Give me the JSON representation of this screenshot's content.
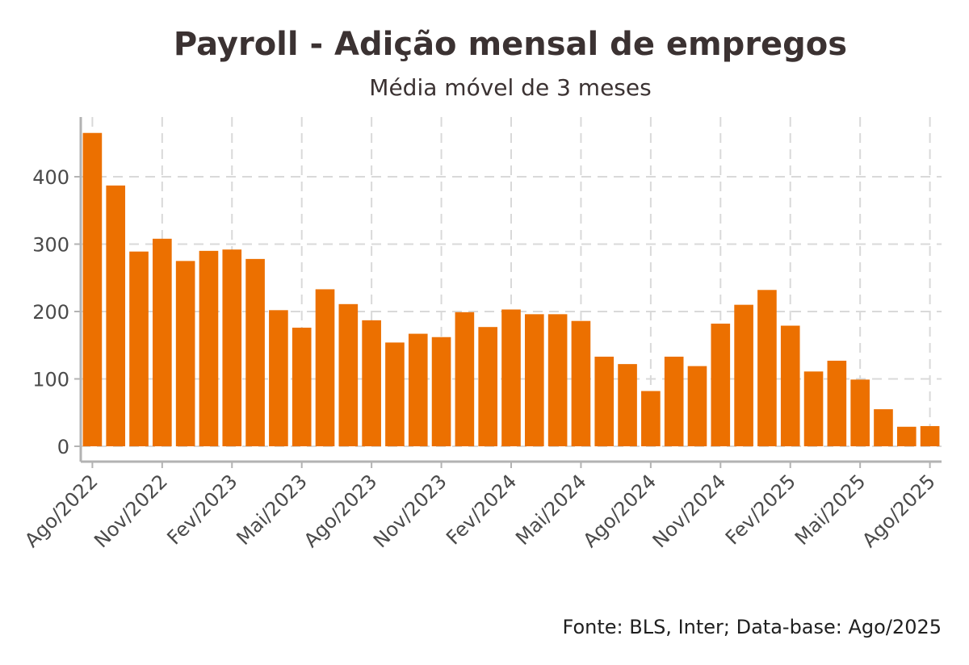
{
  "chart_data": {
    "type": "bar",
    "title": "Payroll - Adição mensal de empregos",
    "subtitle": "Média móvel de 3 meses",
    "caption": "Fonte: BLS, Inter; Data-base: Ago/2025",
    "xlabel": "",
    "ylabel": "",
    "ylim": [
      0,
      465
    ],
    "yticks": [
      0,
      100,
      200,
      300,
      400
    ],
    "grid": true,
    "bar_color": "#ec7000",
    "categories": [
      "Ago/2022",
      "Set/2022",
      "Out/2022",
      "Nov/2022",
      "Dez/2022",
      "Jan/2023",
      "Fev/2023",
      "Mar/2023",
      "Abr/2023",
      "Mai/2023",
      "Jun/2023",
      "Jul/2023",
      "Ago/2023",
      "Set/2023",
      "Out/2023",
      "Nov/2023",
      "Dez/2023",
      "Jan/2024",
      "Fev/2024",
      "Mar/2024",
      "Abr/2024",
      "Mai/2024",
      "Jun/2024",
      "Jul/2024",
      "Ago/2024",
      "Set/2024",
      "Out/2024",
      "Nov/2024",
      "Dez/2024",
      "Jan/2025",
      "Fev/2025",
      "Mar/2025",
      "Abr/2025",
      "Mai/2025",
      "Jun/2025",
      "Jul/2025",
      "Ago/2025"
    ],
    "values": [
      465,
      387,
      289,
      308,
      275,
      290,
      292,
      278,
      202,
      176,
      233,
      211,
      187,
      154,
      167,
      162,
      199,
      177,
      203,
      196,
      196,
      186,
      133,
      122,
      82,
      133,
      119,
      182,
      210,
      232,
      179,
      111,
      127,
      99,
      55,
      29,
      30
    ],
    "xtick_labels": [
      "Ago/2022",
      "Nov/2022",
      "Fev/2023",
      "Mai/2023",
      "Ago/2023",
      "Nov/2023",
      "Fev/2024",
      "Mai/2024",
      "Ago/2024",
      "Nov/2024",
      "Fev/2025",
      "Mai/2025",
      "Ago/2025"
    ],
    "xtick_every": 3
  }
}
